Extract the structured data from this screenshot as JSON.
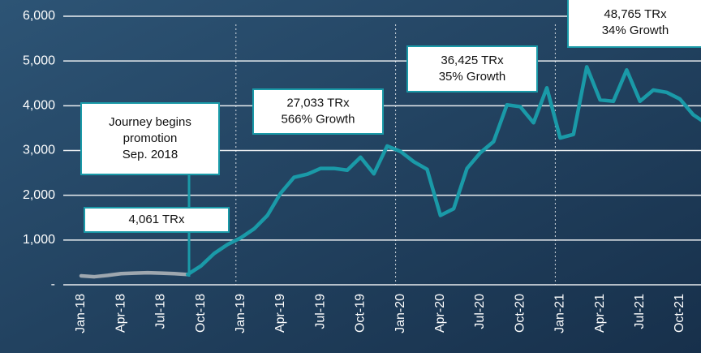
{
  "chart_data": {
    "type": "line",
    "categories": [
      "Jan-18",
      null,
      null,
      "Apr-18",
      null,
      null,
      "Jul-18",
      null,
      null,
      "Oct-18",
      null,
      null,
      "Jan-19",
      null,
      null,
      "Apr-19",
      null,
      null,
      "Jul-19",
      null,
      null,
      "Oct-19",
      null,
      null,
      "Jan-20",
      null,
      null,
      "Apr-20",
      null,
      null,
      "Jul-20",
      null,
      null,
      "Oct-20",
      null,
      null,
      "Jan-21",
      null,
      null,
      "Apr-21",
      null,
      null,
      "Jul-21",
      null,
      null,
      "Oct-21",
      null,
      null
    ],
    "series": [
      {
        "color": "#9ea7af",
        "values": [
          200,
          180,
          210,
          250,
          260,
          270,
          260,
          250,
          230,
          null,
          null,
          null,
          null,
          null,
          null,
          null,
          null,
          null,
          null,
          null,
          null,
          null,
          null,
          null,
          null,
          null,
          null,
          null,
          null,
          null,
          null,
          null,
          null,
          null,
          null,
          null,
          null,
          null,
          null,
          null,
          null,
          null,
          null,
          null,
          null,
          null,
          null,
          null
        ]
      },
      {
        "color": "#1a9aa8",
        "values": [
          null,
          null,
          null,
          null,
          null,
          null,
          null,
          null,
          230,
          420,
          700,
          900,
          1050,
          1250,
          1550,
          2050,
          2400,
          2470,
          2600,
          2600,
          2560,
          2850,
          2480,
          3100,
          2980,
          2750,
          2580,
          1550,
          1700,
          2600,
          2950,
          3200,
          4020,
          3980,
          3620,
          4400,
          3280,
          3360,
          4870,
          4130,
          4100,
          4800,
          4100,
          4350,
          4300,
          4150,
          3800,
          3600
        ]
      }
    ],
    "ylim": [
      0,
      6000
    ],
    "yticks": [
      {
        "value": 0,
        "label": "-"
      },
      {
        "value": 1000,
        "label": "1,000"
      },
      {
        "value": 2000,
        "label": "2,000"
      },
      {
        "value": 3000,
        "label": "3,000"
      },
      {
        "value": 4000,
        "label": "4,000"
      },
      {
        "value": 5000,
        "label": "5,000"
      },
      {
        "value": 6000,
        "label": "6,000"
      }
    ],
    "grid": true,
    "annotations": [
      {
        "lines": [
          "4,061 TRx"
        ]
      },
      {
        "lines": [
          "Journey begins",
          "promotion",
          "Sep. 2018"
        ]
      },
      {
        "lines": [
          "27,033 TRx",
          "566% Growth"
        ]
      },
      {
        "lines": [
          "36,425 TRx",
          "35% Growth"
        ]
      },
      {
        "lines": [
          "48,765 TRx",
          "34% Growth"
        ]
      }
    ]
  }
}
